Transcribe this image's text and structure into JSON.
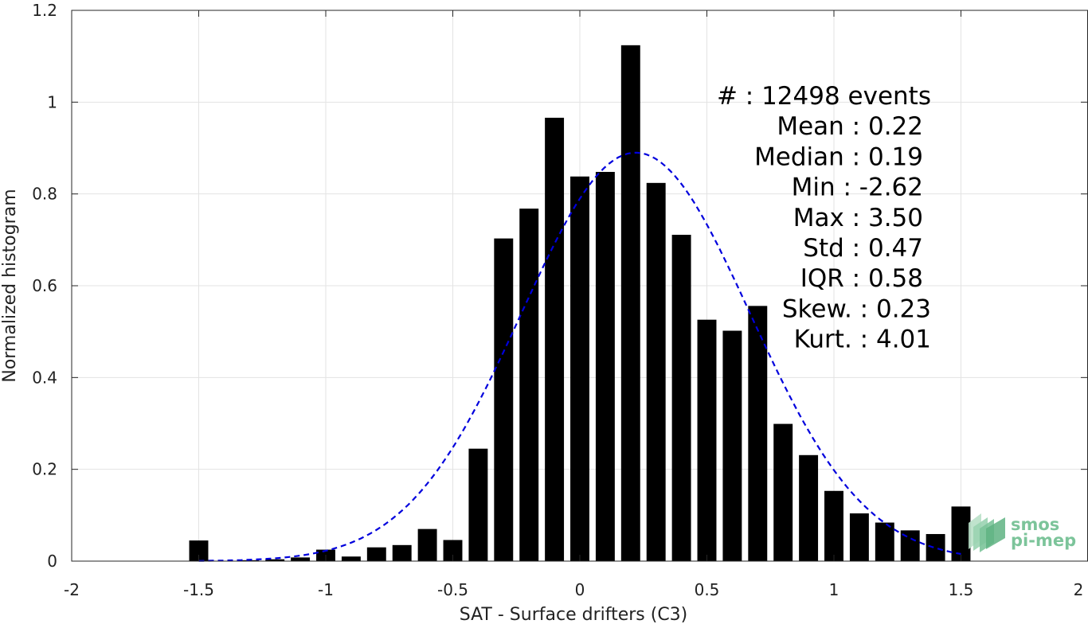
{
  "chart_data": {
    "type": "bar",
    "xlabel": "SAT - Surface drifters (C3)",
    "ylabel": "Normalized histogram",
    "xlim": [
      -2,
      2
    ],
    "ylim": [
      0,
      1.2
    ],
    "xticks": [
      "-2",
      "-1.5",
      "-1",
      "-0.5",
      "0",
      "0.5",
      "1",
      "1.5",
      "2"
    ],
    "yticks": [
      "0",
      "0.2",
      "0.4",
      "0.6",
      "0.8",
      "1",
      "1.2"
    ],
    "grid": true,
    "bar_color": "#000000",
    "bars": {
      "x": [
        -1.5,
        -1.4,
        -1.3,
        -1.2,
        -1.1,
        -1.0,
        -0.9,
        -0.8,
        -0.7,
        -0.6,
        -0.5,
        -0.4,
        -0.3,
        -0.2,
        -0.1,
        0.0,
        0.1,
        0.2,
        0.3,
        0.4,
        0.5,
        0.6,
        0.7,
        0.8,
        0.9,
        1.0,
        1.1,
        1.2,
        1.3,
        1.4,
        1.5
      ],
      "values": [
        0.045,
        0,
        0.002,
        0.004,
        0.008,
        0.025,
        0.01,
        0.03,
        0.035,
        0.07,
        0.046,
        0.245,
        0.703,
        0.768,
        0.966,
        0.838,
        0.848,
        1.124,
        0.824,
        0.711,
        0.526,
        0.502,
        0.556,
        0.299,
        0.231,
        0.153,
        0.104,
        0.084,
        0.067,
        0.059,
        0.119
      ]
    },
    "fit_curve": {
      "type": "normal",
      "style": "dashed",
      "color": "#0000dd",
      "x_range": [
        -1.5,
        1.5
      ],
      "peak_x": 0.22,
      "peak_y": 0.89,
      "sigma": 0.45
    },
    "stats": [
      {
        "label": "#  ",
        "value": ": 12498 events"
      },
      {
        "label": "Mean ",
        "value": ": 0.22"
      },
      {
        "label": "Median ",
        "value": ": 0.19"
      },
      {
        "label": "Min ",
        "value": ": -2.62"
      },
      {
        "label": "Max ",
        "value": ": 3.50"
      },
      {
        "label": "Std ",
        "value": ": 0.47"
      },
      {
        "label": "IQR ",
        "value": ": 0.58"
      },
      {
        "label": "Skew. ",
        "value": ": 0.23"
      },
      {
        "label": "Kurt. ",
        "value": ": 4.01"
      }
    ]
  },
  "logo": {
    "line1": "smos",
    "line2": "pi-mep",
    "color": "#7cc49a"
  }
}
